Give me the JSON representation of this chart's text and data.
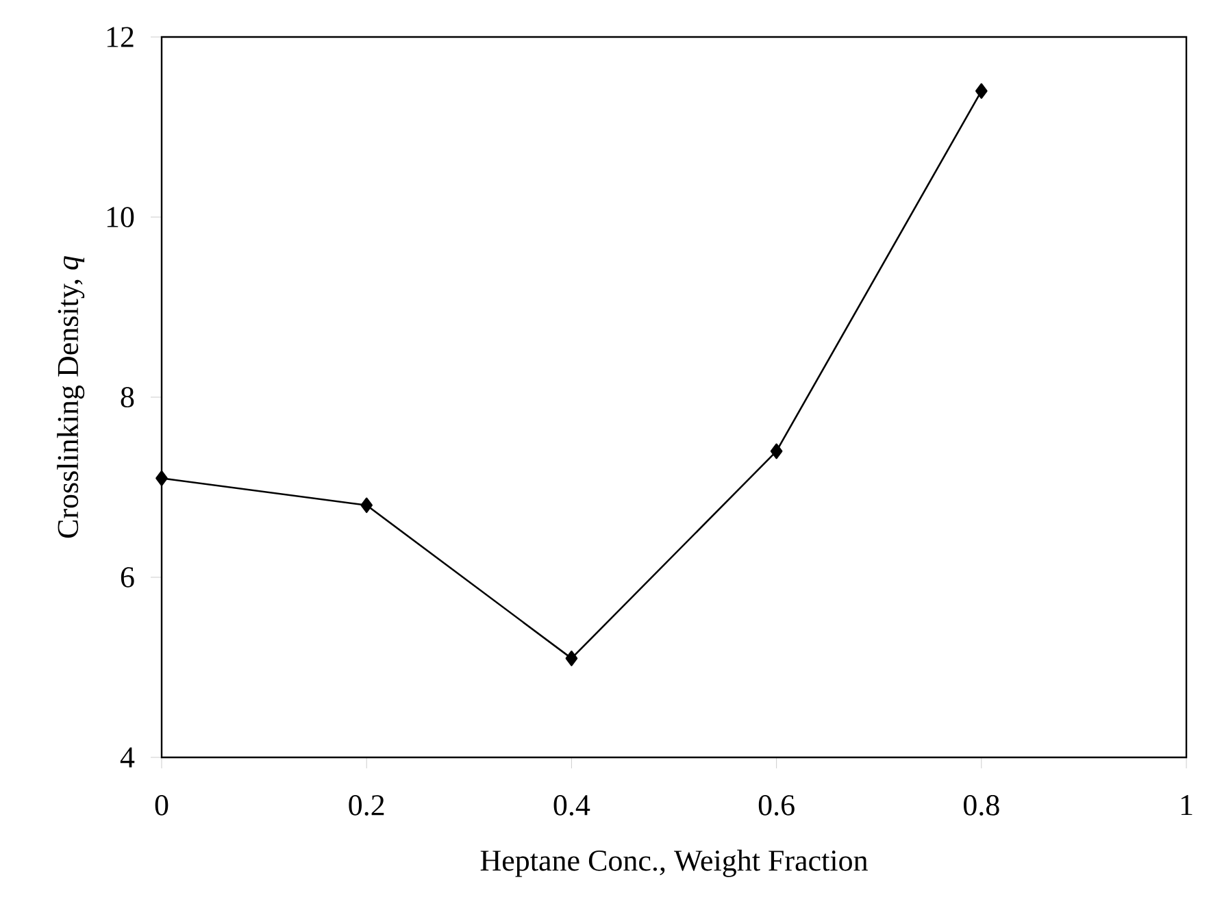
{
  "chart_data": {
    "type": "line",
    "xlabel": "Heptane Conc., Weight Fraction",
    "ylabel": "Crosslinking Density, *q*",
    "x": [
      0,
      0.2,
      0.4,
      0.6,
      0.8
    ],
    "series": [
      {
        "color": "#000000",
        "values": [
          7.1,
          6.8,
          5.1,
          7.4,
          11.4
        ]
      }
    ],
    "xlim": [
      0,
      1
    ],
    "xticks": [
      0,
      0.2,
      0.4,
      0.6,
      0.8,
      1
    ],
    "ylim": [
      4,
      12
    ],
    "yticks": [
      4,
      6,
      8,
      10,
      12
    ],
    "marker": "diamond",
    "line_style": "solid",
    "grid": false
  }
}
